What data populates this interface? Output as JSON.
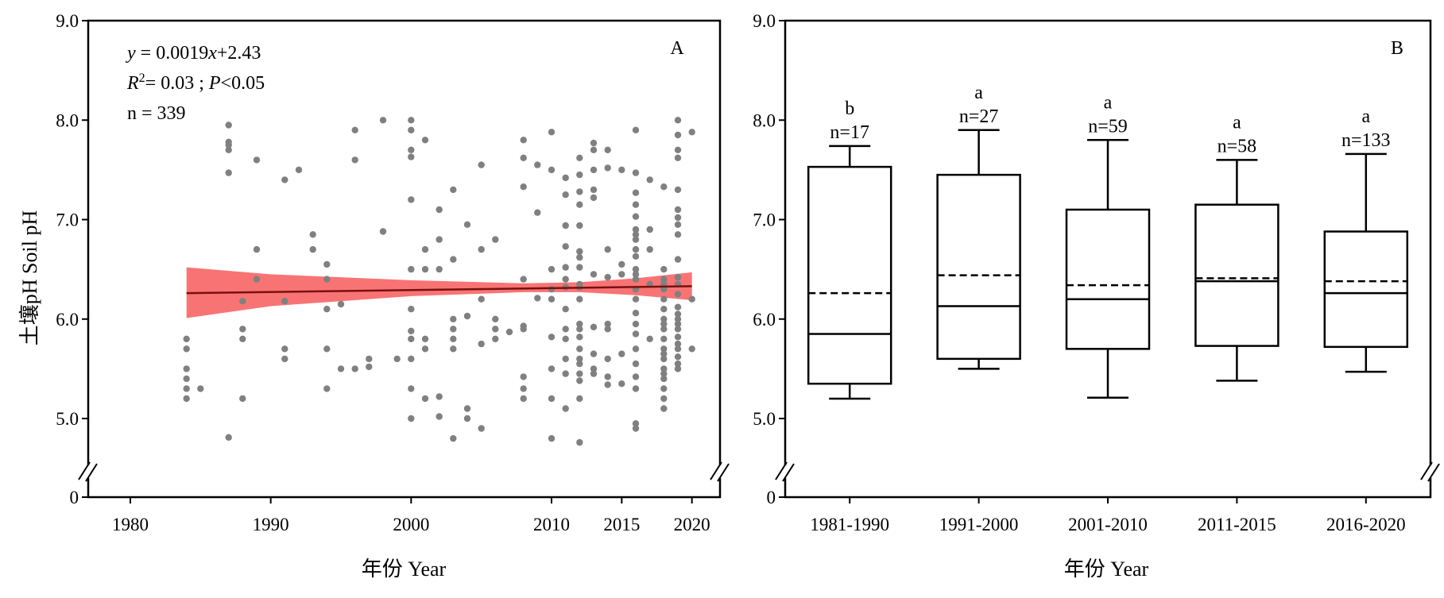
{
  "chart_data": [
    {
      "panel": "A",
      "type": "scatter",
      "panel_label": "A",
      "xlabel": "年份 Year",
      "ylabel": "土壤pH Soil pH",
      "xlim": [
        1977,
        2022
      ],
      "ylim": [
        0,
        9
      ],
      "x_ticks": [
        1980,
        1990,
        2000,
        2010,
        2015,
        2020
      ],
      "x_tick_labels": [
        "1980",
        "1990",
        "2000",
        "2010",
        "2015",
        "2020"
      ],
      "y_ticks": [
        0,
        5,
        6,
        7,
        8,
        9
      ],
      "y_tick_labels": [
        "0",
        "5.0",
        "6.0",
        "7.0",
        "8.0",
        "9.0"
      ],
      "axis_break": true,
      "annotations": {
        "eq_y": "y",
        "eq_rest": " = 0.0019",
        "eq_x": "x",
        "eq_tail": "+2.43",
        "r": "R",
        "r_sup": "2",
        "r_rest": "= 0.03 ; ",
        "p": "P",
        "p_rest": "<0.05",
        "n": "n = 339"
      },
      "regression": {
        "intercept_at_1984": 6.26,
        "value_at_2020": 6.33,
        "x_start": 1984,
        "x_end": 2020,
        "color": "#7a1010"
      },
      "confidence_band": {
        "color": "#f87474",
        "x": [
          1984,
          1990,
          2000,
          2008,
          2012,
          2016,
          2020
        ],
        "lower": [
          6.01,
          6.13,
          6.23,
          6.27,
          6.27,
          6.24,
          6.19
        ],
        "upper": [
          6.52,
          6.45,
          6.39,
          6.36,
          6.37,
          6.41,
          6.47
        ]
      },
      "point_color": "#808080",
      "points": [
        [
          1984,
          5.8
        ],
        [
          1984,
          5.7
        ],
        [
          1984,
          5.5
        ],
        [
          1984,
          5.4
        ],
        [
          1984,
          5.3
        ],
        [
          1984,
          5.2
        ],
        [
          1985,
          5.3
        ],
        [
          1987,
          7.95
        ],
        [
          1987,
          7.78
        ],
        [
          1987,
          7.75
        ],
        [
          1987,
          7.7
        ],
        [
          1987,
          7.47
        ],
        [
          1987,
          4.81
        ],
        [
          1988,
          6.18
        ],
        [
          1988,
          5.9
        ],
        [
          1988,
          5.8
        ],
        [
          1988,
          5.2
        ],
        [
          1989,
          7.6
        ],
        [
          1989,
          6.7
        ],
        [
          1989,
          6.4
        ],
        [
          1991,
          7.4
        ],
        [
          1991,
          6.18
        ],
        [
          1991,
          5.7
        ],
        [
          1991,
          5.6
        ],
        [
          1992,
          7.5
        ],
        [
          1993,
          6.85
        ],
        [
          1993,
          6.7
        ],
        [
          1994,
          6.55
        ],
        [
          1994,
          6.4
        ],
        [
          1994,
          6.1
        ],
        [
          1994,
          5.7
        ],
        [
          1994,
          5.3
        ],
        [
          1995,
          6.15
        ],
        [
          1995,
          5.5
        ],
        [
          1996,
          7.9
        ],
        [
          1996,
          7.6
        ],
        [
          1996,
          5.5
        ],
        [
          1997,
          5.6
        ],
        [
          1997,
          5.52
        ],
        [
          1998,
          8.0
        ],
        [
          1998,
          6.88
        ],
        [
          1999,
          5.6
        ],
        [
          2000,
          8.0
        ],
        [
          2000,
          7.9
        ],
        [
          2000,
          7.7
        ],
        [
          2000,
          7.63
        ],
        [
          2000,
          7.2
        ],
        [
          2000,
          6.5
        ],
        [
          2000,
          6.1
        ],
        [
          2000,
          5.88
        ],
        [
          2000,
          5.8
        ],
        [
          2000,
          5.6
        ],
        [
          2000,
          5.3
        ],
        [
          2000,
          5.0
        ],
        [
          2001,
          7.8
        ],
        [
          2001,
          6.7
        ],
        [
          2001,
          6.5
        ],
        [
          2001,
          5.8
        ],
        [
          2001,
          5.7
        ],
        [
          2001,
          5.2
        ],
        [
          2002,
          7.1
        ],
        [
          2002,
          6.8
        ],
        [
          2002,
          6.5
        ],
        [
          2002,
          5.22
        ],
        [
          2002,
          5.02
        ],
        [
          2003,
          7.3
        ],
        [
          2003,
          6.6
        ],
        [
          2003,
          6.0
        ],
        [
          2003,
          5.9
        ],
        [
          2003,
          5.8
        ],
        [
          2003,
          5.7
        ],
        [
          2003,
          4.8
        ],
        [
          2004,
          6.95
        ],
        [
          2004,
          6.03
        ],
        [
          2004,
          5.1
        ],
        [
          2004,
          5.0
        ],
        [
          2005,
          7.55
        ],
        [
          2005,
          6.7
        ],
        [
          2005,
          6.2
        ],
        [
          2005,
          5.75
        ],
        [
          2005,
          4.9
        ],
        [
          2006,
          6.8
        ],
        [
          2006,
          6.0
        ],
        [
          2006,
          5.9
        ],
        [
          2006,
          5.8
        ],
        [
          2007,
          5.87
        ],
        [
          2008,
          7.8
        ],
        [
          2008,
          7.62
        ],
        [
          2008,
          7.33
        ],
        [
          2008,
          6.4
        ],
        [
          2008,
          5.93
        ],
        [
          2008,
          5.9
        ],
        [
          2008,
          5.42
        ],
        [
          2008,
          5.3
        ],
        [
          2008,
          5.2
        ],
        [
          2009,
          7.55
        ],
        [
          2009,
          7.07
        ],
        [
          2009,
          6.21
        ],
        [
          2010,
          7.88
        ],
        [
          2010,
          7.5
        ],
        [
          2010,
          6.5
        ],
        [
          2010,
          6.3
        ],
        [
          2010,
          6.2
        ],
        [
          2010,
          5.82
        ],
        [
          2010,
          5.5
        ],
        [
          2010,
          5.2
        ],
        [
          2010,
          4.8
        ],
        [
          2011,
          7.42
        ],
        [
          2011,
          7.25
        ],
        [
          2011,
          6.94
        ],
        [
          2011,
          6.73
        ],
        [
          2011,
          6.52
        ],
        [
          2011,
          6.4
        ],
        [
          2011,
          6.32
        ],
        [
          2011,
          6.1
        ],
        [
          2011,
          5.9
        ],
        [
          2011,
          5.8
        ],
        [
          2011,
          5.6
        ],
        [
          2011,
          5.45
        ],
        [
          2011,
          5.1
        ],
        [
          2012,
          7.62
        ],
        [
          2012,
          7.45
        ],
        [
          2012,
          7.28
        ],
        [
          2012,
          7.15
        ],
        [
          2012,
          6.94
        ],
        [
          2012,
          6.68
        ],
        [
          2012,
          6.62
        ],
        [
          2012,
          6.52
        ],
        [
          2012,
          6.35
        ],
        [
          2012,
          6.32
        ],
        [
          2012,
          6.2
        ],
        [
          2012,
          5.95
        ],
        [
          2012,
          5.9
        ],
        [
          2012,
          5.82
        ],
        [
          2012,
          5.7
        ],
        [
          2012,
          5.6
        ],
        [
          2012,
          5.55
        ],
        [
          2012,
          5.45
        ],
        [
          2012,
          5.38
        ],
        [
          2012,
          5.2
        ],
        [
          2012,
          4.76
        ],
        [
          2013,
          7.77
        ],
        [
          2013,
          7.7
        ],
        [
          2013,
          7.5
        ],
        [
          2013,
          7.3
        ],
        [
          2013,
          7.22
        ],
        [
          2013,
          6.45
        ],
        [
          2013,
          5.92
        ],
        [
          2013,
          5.65
        ],
        [
          2013,
          5.5
        ],
        [
          2013,
          5.45
        ],
        [
          2014,
          7.7
        ],
        [
          2014,
          7.52
        ],
        [
          2014,
          6.7
        ],
        [
          2014,
          6.42
        ],
        [
          2014,
          5.95
        ],
        [
          2014,
          5.9
        ],
        [
          2014,
          5.6
        ],
        [
          2014,
          5.42
        ],
        [
          2014,
          5.34
        ],
        [
          2015,
          7.5
        ],
        [
          2015,
          6.55
        ],
        [
          2015,
          6.45
        ],
        [
          2015,
          5.65
        ],
        [
          2015,
          5.35
        ],
        [
          2016,
          7.9
        ],
        [
          2016,
          7.47
        ],
        [
          2016,
          7.27
        ],
        [
          2016,
          7.15
        ],
        [
          2016,
          7.03
        ],
        [
          2016,
          6.9
        ],
        [
          2016,
          6.85
        ],
        [
          2016,
          6.8
        ],
        [
          2016,
          6.7
        ],
        [
          2016,
          6.63
        ],
        [
          2016,
          6.5
        ],
        [
          2016,
          6.45
        ],
        [
          2016,
          6.4
        ],
        [
          2016,
          6.3
        ],
        [
          2016,
          6.2
        ],
        [
          2016,
          6.06
        ],
        [
          2016,
          5.95
        ],
        [
          2016,
          5.85
        ],
        [
          2016,
          5.7
        ],
        [
          2016,
          5.55
        ],
        [
          2016,
          5.42
        ],
        [
          2016,
          5.3
        ],
        [
          2016,
          4.95
        ],
        [
          2016,
          4.9
        ],
        [
          2017,
          7.4
        ],
        [
          2017,
          6.9
        ],
        [
          2017,
          6.7
        ],
        [
          2017,
          6.35
        ],
        [
          2017,
          5.8
        ],
        [
          2018,
          7.33
        ],
        [
          2018,
          6.5
        ],
        [
          2018,
          6.4
        ],
        [
          2018,
          6.35
        ],
        [
          2018,
          6.3
        ],
        [
          2018,
          6.2
        ],
        [
          2018,
          6.1
        ],
        [
          2018,
          6.0
        ],
        [
          2018,
          5.95
        ],
        [
          2018,
          5.9
        ],
        [
          2018,
          5.8
        ],
        [
          2018,
          5.7
        ],
        [
          2018,
          5.65
        ],
        [
          2018,
          5.6
        ],
        [
          2018,
          5.5
        ],
        [
          2018,
          5.45
        ],
        [
          2018,
          5.4
        ],
        [
          2018,
          5.3
        ],
        [
          2018,
          5.2
        ],
        [
          2018,
          5.1
        ],
        [
          2019,
          8.0
        ],
        [
          2019,
          7.85
        ],
        [
          2019,
          7.7
        ],
        [
          2019,
          7.62
        ],
        [
          2019,
          7.3
        ],
        [
          2019,
          7.1
        ],
        [
          2019,
          7.02
        ],
        [
          2019,
          6.95
        ],
        [
          2019,
          6.85
        ],
        [
          2019,
          6.6
        ],
        [
          2019,
          6.42
        ],
        [
          2019,
          6.35
        ],
        [
          2019,
          6.25
        ],
        [
          2019,
          6.12
        ],
        [
          2019,
          6.05
        ],
        [
          2019,
          6.0
        ],
        [
          2019,
          5.95
        ],
        [
          2019,
          5.9
        ],
        [
          2019,
          5.82
        ],
        [
          2019,
          5.75
        ],
        [
          2019,
          5.7
        ],
        [
          2019,
          5.62
        ],
        [
          2019,
          5.55
        ],
        [
          2019,
          5.5
        ],
        [
          2020,
          7.88
        ],
        [
          2020,
          6.2
        ],
        [
          2020,
          5.7
        ]
      ]
    },
    {
      "panel": "B",
      "type": "box",
      "panel_label": "B",
      "xlabel": "年份 Year",
      "ylim": [
        0,
        9
      ],
      "y_ticks": [
        0,
        5,
        6,
        7,
        8,
        9
      ],
      "y_tick_labels": [
        "0",
        "5.0",
        "6.0",
        "7.0",
        "8.0",
        "9.0"
      ],
      "axis_break": true,
      "categories": [
        "1981-1990",
        "1991-2000",
        "2001-2010",
        "2011-2015",
        "2016-2020"
      ],
      "boxes": [
        {
          "group": "b",
          "n": "n=17",
          "whisker_low": 5.2,
          "q1": 5.35,
          "median": 5.85,
          "mean": 6.26,
          "q3": 7.53,
          "whisker_high": 7.74
        },
        {
          "group": "a",
          "n": "n=27",
          "whisker_low": 5.5,
          "q1": 5.6,
          "median": 6.13,
          "mean": 6.44,
          "q3": 7.45,
          "whisker_high": 7.9
        },
        {
          "group": "a",
          "n": "n=59",
          "whisker_low": 5.21,
          "q1": 5.7,
          "median": 6.2,
          "mean": 6.34,
          "q3": 7.1,
          "whisker_high": 7.8
        },
        {
          "group": "a",
          "n": "n=58",
          "whisker_low": 5.38,
          "q1": 5.73,
          "median": 6.38,
          "mean": 6.41,
          "q3": 7.15,
          "whisker_high": 7.6
        },
        {
          "group": "a",
          "n": "n=133",
          "whisker_low": 5.47,
          "q1": 5.72,
          "median": 6.26,
          "mean": 6.38,
          "q3": 6.88,
          "whisker_high": 7.66
        }
      ]
    }
  ]
}
